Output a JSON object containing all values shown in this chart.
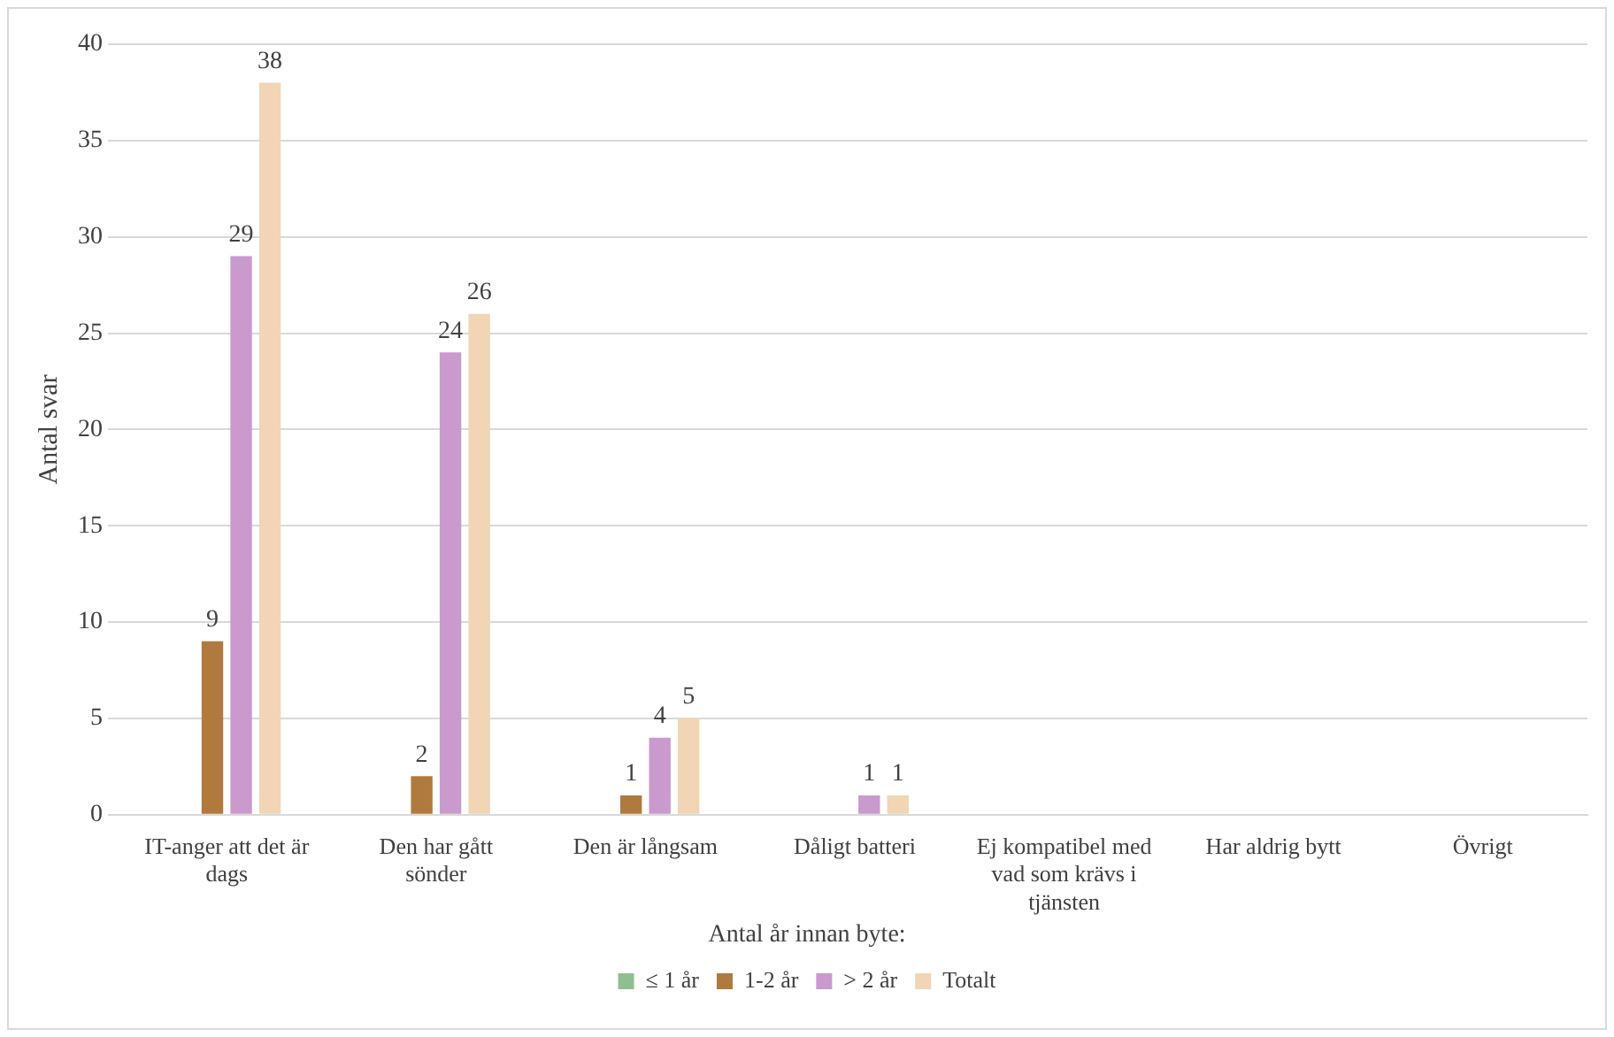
{
  "chart_data": {
    "type": "bar",
    "ylabel": "Antal svar",
    "legend_title": "Antal år innan byte:",
    "categories": [
      "IT-anger att det är dags",
      "Den har gått sönder",
      "Den är långsam",
      "Dåligt batteri",
      "Ej kompatibel med vad som krävs i tjänsten",
      "Har aldrig bytt",
      "Övrigt"
    ],
    "series": [
      {
        "name": "≤ 1 år",
        "color": "#8fbf8f",
        "values": [
          0,
          0,
          0,
          0,
          0,
          0,
          0
        ],
        "value_labels": [
          null,
          null,
          null,
          null,
          null,
          null,
          null
        ]
      },
      {
        "name": "1-2 år",
        "color": "#b07a3e",
        "values": [
          9,
          2,
          1,
          0,
          0,
          0,
          0
        ],
        "value_labels": [
          "9",
          "2",
          "1",
          null,
          null,
          null,
          null
        ]
      },
      {
        "name": "> 2 år",
        "color": "#c99acb",
        "values": [
          29,
          24,
          4,
          1,
          0,
          0,
          0
        ],
        "value_labels": [
          "29",
          "24",
          "4",
          "1",
          null,
          null,
          null
        ]
      },
      {
        "name": "Totalt",
        "color": "#f1d5b4",
        "values": [
          38,
          26,
          5,
          1,
          0,
          0,
          0
        ],
        "value_labels": [
          "38",
          "26",
          "5",
          "1",
          null,
          null,
          null
        ]
      }
    ],
    "ylim": [
      0,
      40
    ],
    "yticks": [
      0,
      5,
      10,
      15,
      20,
      25,
      30,
      35,
      40
    ],
    "grid": "y",
    "legend": "bottom"
  }
}
